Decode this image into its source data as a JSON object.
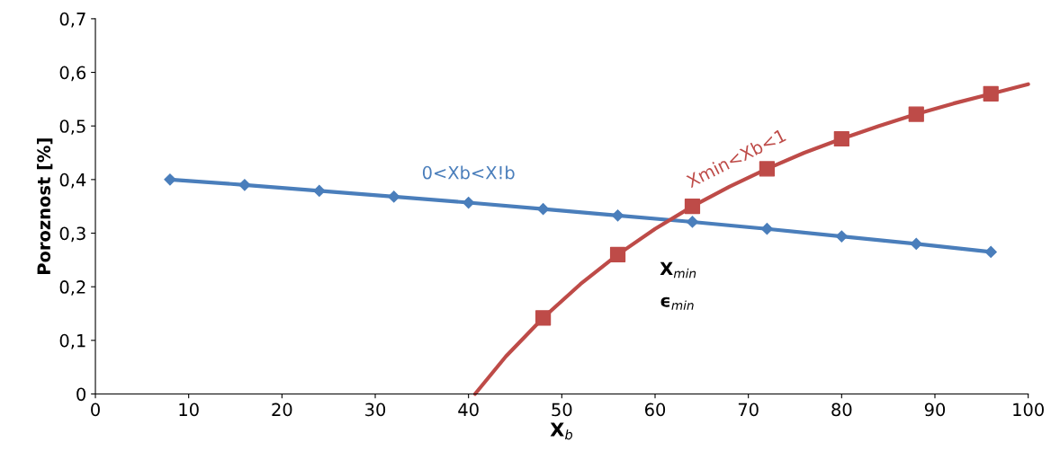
{
  "chart_data": {
    "type": "line",
    "xlabel": "X$_{b}$",
    "ylabel": "Poroznost [%]",
    "xlim": [
      0,
      100
    ],
    "ylim": [
      0,
      0.7
    ],
    "xticks": [
      0,
      10,
      20,
      30,
      40,
      50,
      60,
      70,
      80,
      90,
      100
    ],
    "yticks": [
      {
        "value": 0,
        "label": "0"
      },
      {
        "value": 0.1,
        "label": "0,1"
      },
      {
        "value": 0.2,
        "label": "0,2"
      },
      {
        "value": 0.3,
        "label": "0,3"
      },
      {
        "value": 0.4,
        "label": "0,4"
      },
      {
        "value": 0.5,
        "label": "0,5"
      },
      {
        "value": 0.6,
        "label": "0,6"
      },
      {
        "value": 0.7,
        "label": "0,7"
      }
    ],
    "grid": false,
    "legend": false,
    "series": [
      {
        "name": "0<Xb<X!b",
        "color": "#4a7ebb",
        "marker": "diamond",
        "x": [
          8,
          16,
          24,
          32,
          40,
          48,
          56,
          64,
          72,
          80,
          88,
          96
        ],
        "values": [
          0.4,
          0.39,
          0.379,
          0.368,
          0.357,
          0.345,
          0.333,
          0.321,
          0.308,
          0.294,
          0.28,
          0.265
        ]
      },
      {
        "color": "#be4b48",
        "marker": "none",
        "x": [
          40.7,
          44,
          48,
          52,
          56,
          60,
          64,
          68,
          72,
          76,
          80,
          84,
          88,
          92,
          96,
          100
        ],
        "values": [
          0,
          0.07,
          0.142,
          0.205,
          0.26,
          0.308,
          0.35,
          0.387,
          0.42,
          0.45,
          0.476,
          0.5,
          0.522,
          0.542,
          0.56,
          0.578
        ]
      },
      {
        "type": "scatter",
        "name": "Xmin<Xb<1",
        "color": "#be4b48",
        "marker": "square",
        "x": [
          48,
          56,
          64,
          72,
          80,
          88,
          96
        ],
        "values": [
          0.142,
          0.26,
          0.35,
          0.42,
          0.476,
          0.522,
          0.56
        ]
      }
    ],
    "annotations": [
      "X$_{min}$",
      "ϵ$_{min}$"
    ]
  }
}
